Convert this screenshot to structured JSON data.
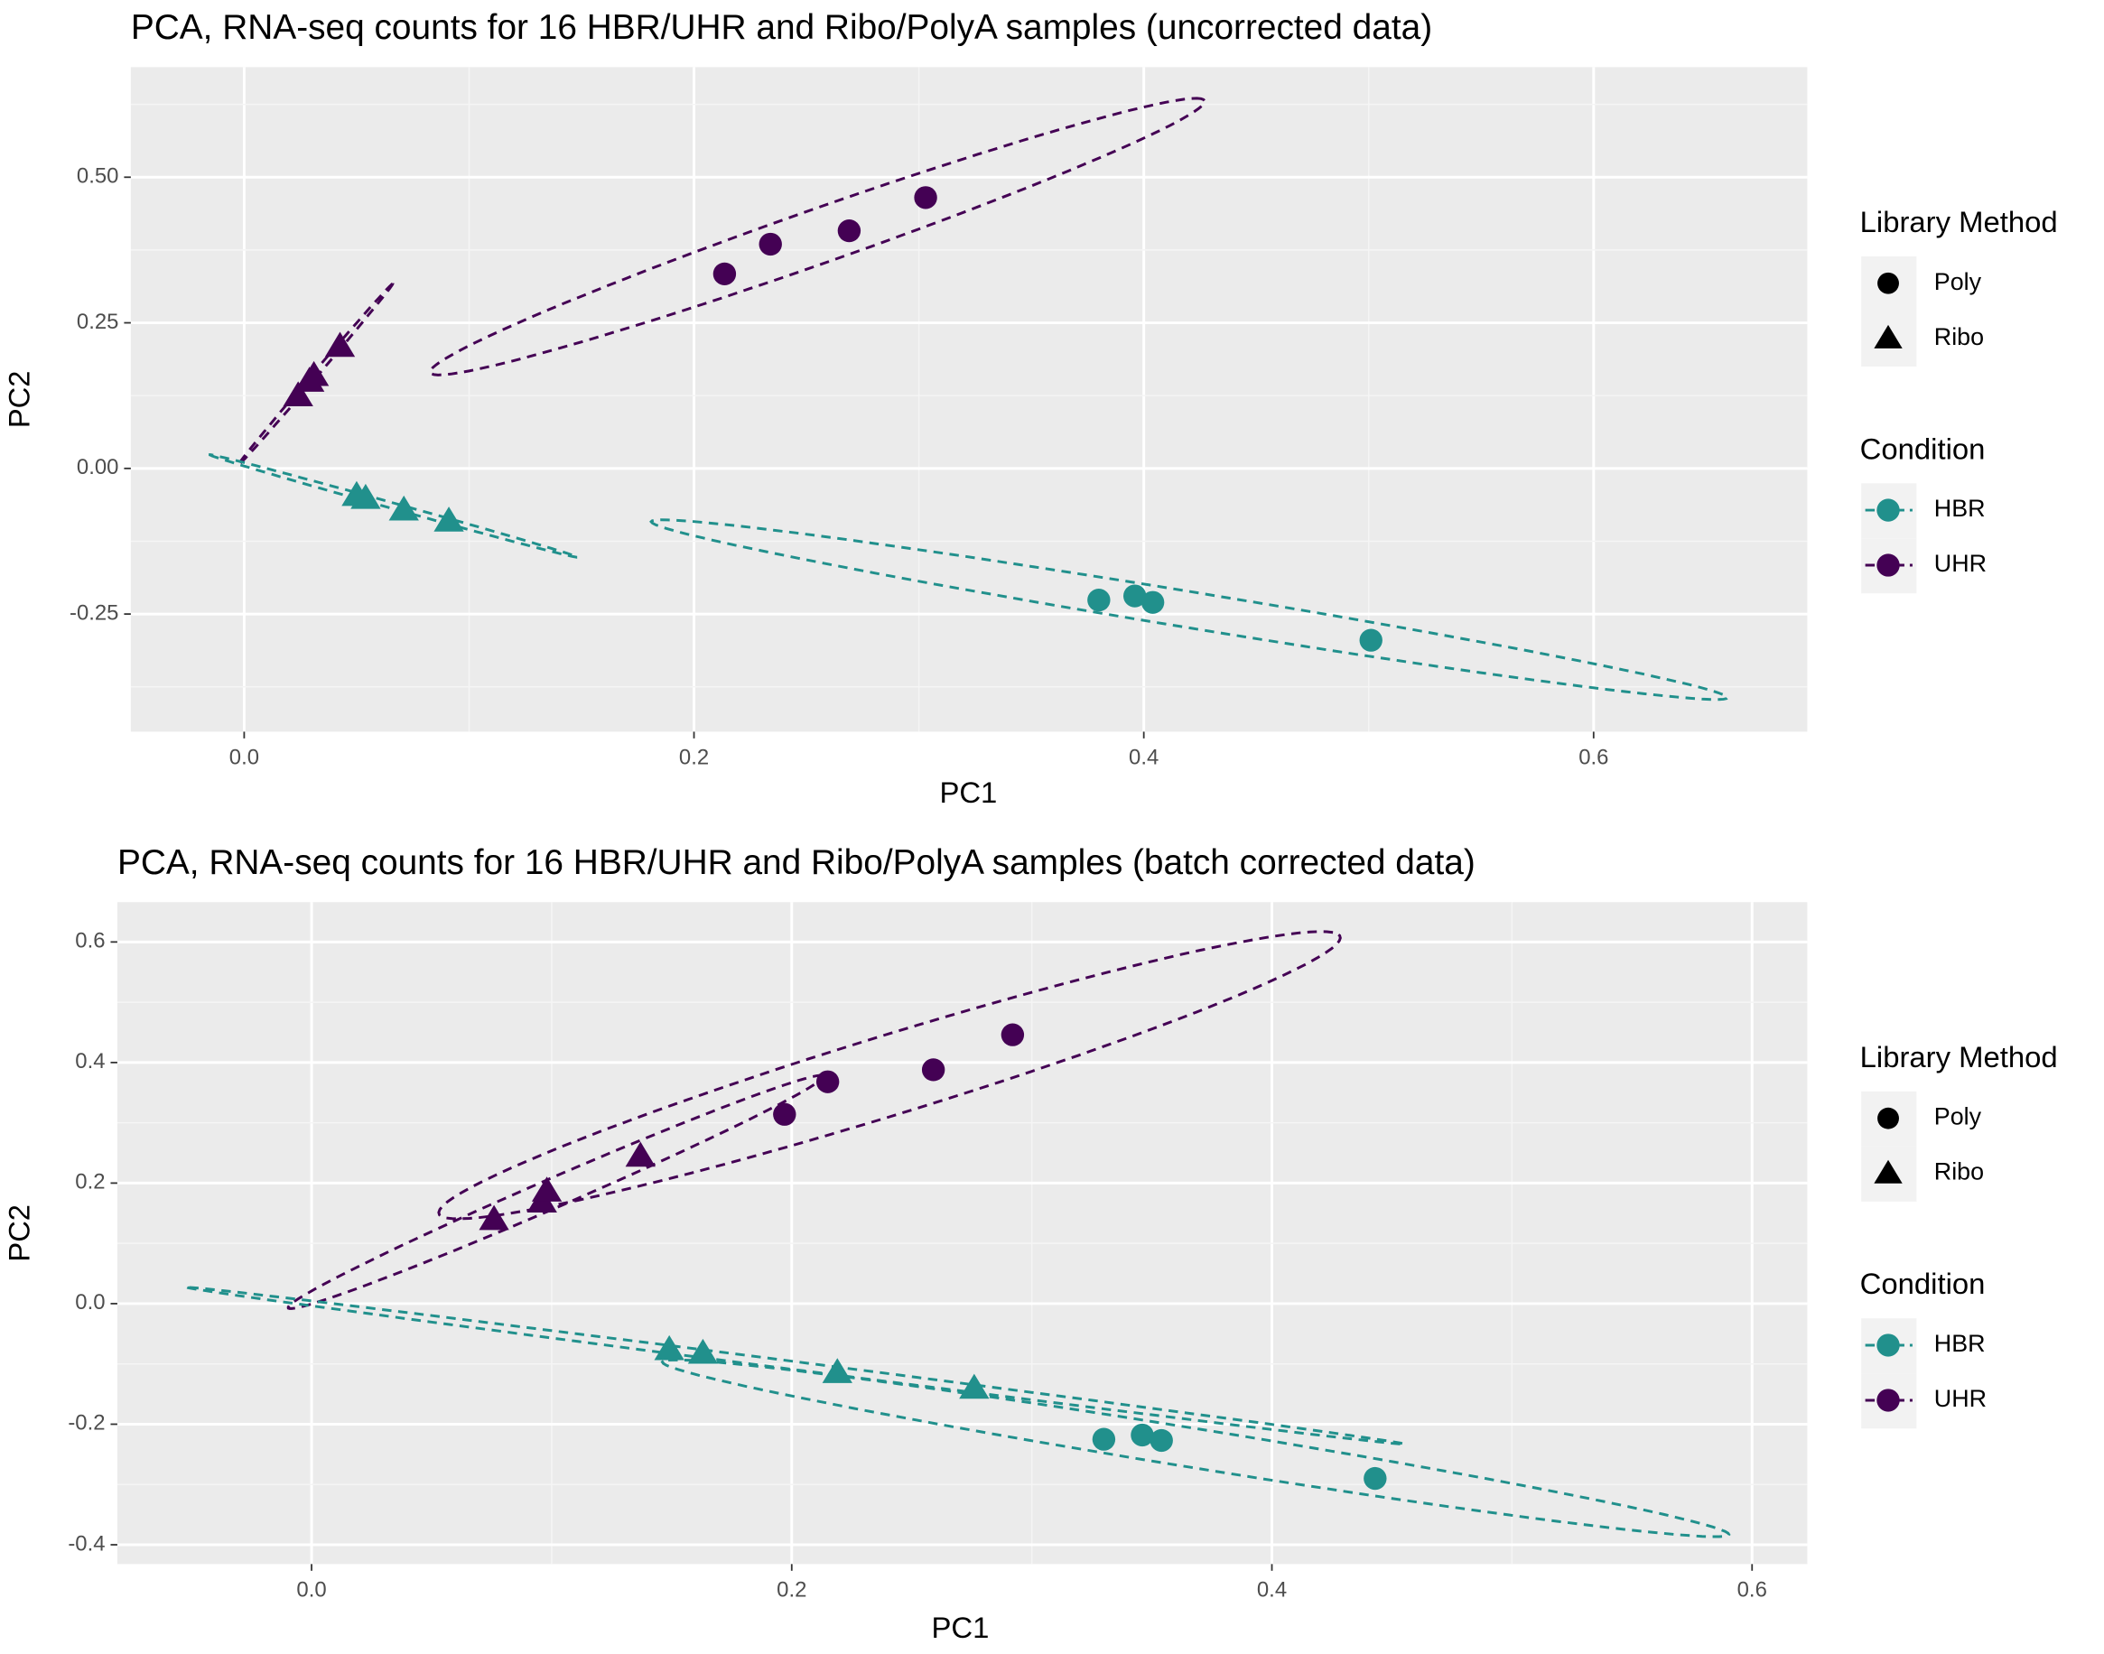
{
  "chart_data": [
    {
      "type": "scatter",
      "title": "PCA, RNA-seq counts for 16 HBR/UHR and Ribo/PolyA samples (uncorrected data)",
      "x_label": "PC1",
      "y_label": "PC2",
      "xlim": [
        -0.0504,
        0.695
      ],
      "ylim": [
        -0.452,
        0.689
      ],
      "xticks": [
        {
          "value": 0,
          "label": "0.0"
        },
        0.2,
        0.4,
        0.6
      ],
      "yticks": [
        {
          "value": 0.5,
          "label": "0.50"
        },
        0.25,
        {
          "value": 0,
          "label": "0.00"
        },
        -0.25
      ],
      "grid": true,
      "ellipses": true,
      "shape_legend": {
        "title": "Library Method",
        "items": [
          {
            "label": "Poly",
            "shape": "circle"
          },
          {
            "label": "Ribo",
            "shape": "triangle"
          }
        ]
      },
      "color_legend": {
        "title": "Condition",
        "items": [
          {
            "label": "HBR",
            "color": "#21908c"
          },
          {
            "label": "UHR",
            "color": "#440154"
          }
        ]
      },
      "series": [
        {
          "condition": "UHR",
          "method": "Poly",
          "x": [
            0.2136,
            0.234,
            0.269,
            0.303
          ],
          "y": [
            0.334,
            0.385,
            0.408,
            0.465
          ]
        },
        {
          "condition": "UHR",
          "method": "Ribo",
          "x": [
            0.024,
            0.029,
            0.031,
            0.0426
          ],
          "y": [
            0.125,
            0.15,
            0.16,
            0.21
          ]
        },
        {
          "condition": "HBR",
          "method": "Ribo",
          "x": [
            0.05,
            0.054,
            0.071,
            0.091
          ],
          "y": [
            -0.046,
            -0.051,
            -0.071,
            -0.09
          ]
        },
        {
          "condition": "HBR",
          "method": "Poly",
          "x": [
            0.38,
            0.396,
            0.404,
            0.501
          ],
          "y": [
            -0.226,
            -0.219,
            -0.23,
            -0.295
          ]
        }
      ]
    },
    {
      "type": "scatter",
      "title": "PCA, RNA-seq counts for 16 HBR/UHR and Ribo/PolyA samples (batch corrected data)",
      "x_label": "PC1",
      "y_label": "PC2",
      "xlim": [
        -0.0809,
        0.623
      ],
      "ylim": [
        -0.432,
        0.666
      ],
      "xticks": [
        {
          "value": 0,
          "label": "0.0"
        },
        0.2,
        0.4,
        0.6
      ],
      "yticks": [
        0.6,
        0.4,
        0.2,
        {
          "value": 0,
          "label": "0.0"
        },
        -0.2,
        -0.4
      ],
      "grid": true,
      "ellipses": true,
      "shape_legend": {
        "title": "Library Method",
        "items": [
          {
            "label": "Poly",
            "shape": "circle"
          },
          {
            "label": "Ribo",
            "shape": "triangle"
          }
        ]
      },
      "color_legend": {
        "title": "Condition",
        "items": [
          {
            "label": "HBR",
            "color": "#21908c"
          },
          {
            "label": "UHR",
            "color": "#440154"
          }
        ]
      },
      "series": [
        {
          "condition": "UHR",
          "method": "Poly",
          "x": [
            0.197,
            0.215,
            0.259,
            0.292
          ],
          "y": [
            0.314,
            0.368,
            0.388,
            0.446
          ]
        },
        {
          "condition": "UHR",
          "method": "Ribo",
          "x": [
            0.076,
            0.096,
            0.098,
            0.137
          ],
          "y": [
            0.14,
            0.169,
            0.187,
            0.245
          ]
        },
        {
          "condition": "HBR",
          "method": "Ribo",
          "x": [
            0.149,
            0.163,
            0.219,
            0.276
          ],
          "y": [
            -0.076,
            -0.082,
            -0.114,
            -0.14
          ]
        },
        {
          "condition": "HBR",
          "method": "Poly",
          "x": [
            0.33,
            0.346,
            0.354,
            0.443
          ],
          "y": [
            -0.225,
            -0.218,
            -0.227,
            -0.29
          ]
        }
      ]
    }
  ]
}
